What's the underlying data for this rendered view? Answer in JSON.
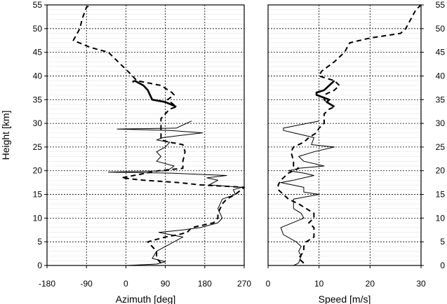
{
  "chart_data": [
    {
      "type": "line",
      "panel": "left",
      "xlabel": "Azimuth [deg]",
      "ylabel": "Height [km]",
      "xlim": [
        -180,
        270
      ],
      "ylim": [
        0,
        55
      ],
      "xticks": [
        "-180",
        "-90",
        "0",
        "90",
        "180",
        "270"
      ],
      "yticks": [
        "0",
        "5",
        "10",
        "15",
        "20",
        "25",
        "30",
        "35",
        "40",
        "45",
        "50",
        "55"
      ],
      "grid": true,
      "series": [
        {
          "style": "thin-solid",
          "points": [
            [
              0,
              0
            ],
            [
              70,
              0.3
            ],
            [
              90,
              0.8
            ],
            [
              60,
              1.5
            ],
            [
              70,
              3
            ],
            [
              90,
              4
            ],
            [
              110,
              5
            ],
            [
              130,
              6
            ],
            [
              75,
              7
            ],
            [
              130,
              7.5
            ],
            [
              170,
              8
            ],
            [
              210,
              9
            ],
            [
              220,
              10
            ],
            [
              210,
              12
            ],
            [
              220,
              14
            ],
            [
              250,
              15
            ],
            [
              245,
              16
            ],
            [
              265,
              16.5
            ],
            [
              190,
              17
            ],
            [
              210,
              18
            ],
            [
              185,
              18.5
            ],
            [
              230,
              19
            ],
            [
              100,
              19.5
            ],
            [
              -40,
              19.7
            ],
            [
              95,
              20
            ],
            [
              110,
              21
            ],
            [
              70,
              22
            ],
            [
              80,
              23
            ],
            [
              70,
              24
            ],
            [
              90,
              25
            ],
            [
              100,
              26
            ],
            [
              70,
              26.5
            ],
            [
              85,
              27
            ],
            [
              175,
              28
            ],
            [
              100,
              28.5
            ],
            [
              -20,
              28.8
            ],
            [
              115,
              29
            ],
            [
              150,
              30.5
            ]
          ]
        },
        {
          "style": "thick-solid",
          "segments": [
            [
              [
                115,
                33.5
              ],
              [
                90,
                34.5
              ],
              [
                60,
                35
              ],
              [
                50,
                37
              ],
              [
                40,
                38
              ],
              [
                20,
                39
              ]
            ],
            [
              [
                20,
                39
              ],
              [
                15,
                38.7
              ]
            ]
          ]
        },
        {
          "style": "dashed",
          "points": [
            [
              80,
              0.5
            ],
            [
              70,
              1.5
            ],
            [
              70,
              3
            ],
            [
              55,
              4.5
            ],
            [
              50,
              5
            ],
            [
              90,
              6
            ],
            [
              120,
              6.5
            ],
            [
              140,
              7
            ],
            [
              150,
              8
            ],
            [
              200,
              9
            ],
            [
              210,
              10
            ],
            [
              210,
              11
            ],
            [
              220,
              13
            ],
            [
              230,
              14
            ],
            [
              250,
              15
            ],
            [
              270,
              16.5
            ],
            [
              170,
              17
            ],
            [
              120,
              17.5
            ],
            [
              40,
              18
            ],
            [
              -10,
              18.5
            ],
            [
              75,
              20
            ],
            [
              130,
              20.5
            ],
            [
              130,
              22
            ],
            [
              135,
              24
            ],
            [
              130,
              25.5
            ],
            [
              100,
              26
            ],
            [
              80,
              26.5
            ],
            [
              80,
              28.5
            ],
            [
              80,
              30
            ],
            [
              80,
              31
            ],
            [
              90,
              32
            ],
            [
              100,
              33
            ],
            [
              115,
              33.5
            ],
            [
              95,
              35
            ],
            [
              110,
              36
            ],
            [
              105,
              36.5
            ],
            [
              80,
              38
            ],
            [
              25,
              39
            ],
            [
              20,
              39.5
            ],
            [
              10,
              40.5
            ],
            [
              -40,
              45
            ],
            [
              -80,
              46
            ],
            [
              -120,
              47.5
            ],
            [
              -105,
              50
            ],
            [
              -100,
              52
            ],
            [
              -90,
              54.5
            ],
            [
              -80,
              55
            ]
          ]
        }
      ]
    },
    {
      "type": "line",
      "panel": "right",
      "xlabel": "Speed [m/s]",
      "xlim": [
        0,
        30
      ],
      "ylim": [
        0,
        55
      ],
      "xticks": [
        "0",
        "10",
        "20",
        "30"
      ],
      "yticks": [
        "0",
        "5",
        "10",
        "15",
        "20",
        "25",
        "30",
        "35",
        "40",
        "45",
        "50",
        "55"
      ],
      "grid": true,
      "series": [
        {
          "style": "thin-solid",
          "points": [
            [
              5,
              0
            ],
            [
              6,
              0.5
            ],
            [
              6.5,
              2
            ],
            [
              6,
              3
            ],
            [
              6.5,
              4
            ],
            [
              5.5,
              5
            ],
            [
              3,
              6.5
            ],
            [
              2.5,
              8
            ],
            [
              7,
              10
            ],
            [
              6.5,
              11
            ],
            [
              5,
              12
            ],
            [
              5,
              14
            ],
            [
              10,
              15
            ],
            [
              7,
              15.5
            ],
            [
              7,
              16.5
            ],
            [
              2.5,
              17.5
            ],
            [
              5,
              18
            ],
            [
              9,
              19
            ],
            [
              7,
              19.5
            ],
            [
              4,
              20
            ],
            [
              6,
              20.5
            ],
            [
              11,
              21
            ],
            [
              7,
              22
            ],
            [
              6,
              23
            ],
            [
              9,
              24
            ],
            [
              13,
              25
            ],
            [
              8.5,
              25.5
            ],
            [
              9,
              27
            ],
            [
              5,
              28
            ],
            [
              3,
              28.5
            ],
            [
              3,
              29
            ],
            [
              10,
              30.5
            ]
          ]
        },
        {
          "style": "thick-solid",
          "segments": [
            [
              [
                13,
                33.5
              ],
              [
                11.5,
                34.5
              ],
              [
                12,
                35
              ],
              [
                9.5,
                36
              ],
              [
                9.5,
                36.5
              ],
              [
                11,
                37
              ],
              [
                12,
                38
              ],
              [
                13,
                39
              ]
            ]
          ]
        },
        {
          "style": "dashed",
          "points": [
            [
              7,
              0.5
            ],
            [
              6,
              1.5
            ],
            [
              7,
              3
            ],
            [
              7,
              4
            ],
            [
              7.5,
              5
            ],
            [
              9,
              6
            ],
            [
              9,
              8
            ],
            [
              8,
              9
            ],
            [
              9,
              10
            ],
            [
              9,
              11
            ],
            [
              6,
              13
            ],
            [
              4,
              14
            ],
            [
              3,
              15
            ],
            [
              2,
              16
            ],
            [
              2,
              17
            ],
            [
              2.5,
              18
            ],
            [
              4,
              19.5
            ],
            [
              6,
              20.5
            ],
            [
              5,
              21
            ],
            [
              5,
              22
            ],
            [
              4.5,
              24
            ],
            [
              5,
              25
            ],
            [
              7,
              26
            ],
            [
              8,
              27
            ],
            [
              9.5,
              28
            ],
            [
              10,
              29
            ],
            [
              11,
              30
            ],
            [
              11,
              32
            ],
            [
              12,
              33
            ],
            [
              13,
              33.5
            ],
            [
              11.5,
              34.5
            ],
            [
              11,
              35
            ],
            [
              11,
              36
            ],
            [
              13,
              37
            ],
            [
              14,
              38
            ],
            [
              13,
              39
            ],
            [
              10,
              40
            ],
            [
              10.5,
              41
            ],
            [
              13,
              43
            ],
            [
              15,
              45
            ],
            [
              16,
              47
            ],
            [
              20,
              48
            ],
            [
              26,
              49
            ],
            [
              27,
              50
            ],
            [
              29,
              54
            ],
            [
              30,
              55
            ]
          ]
        }
      ]
    }
  ]
}
